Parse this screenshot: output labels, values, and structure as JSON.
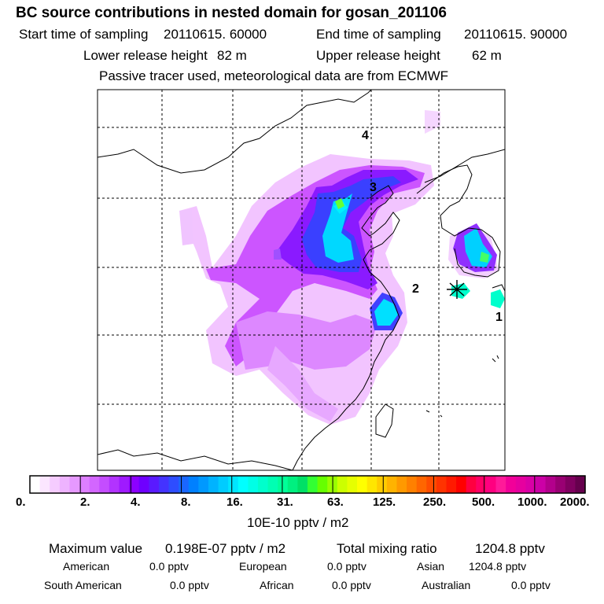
{
  "header": {
    "title": "BC  source contributions in nested domain for gosan_201106",
    "start_label": "Start time of sampling",
    "start_value": "20110615. 60000",
    "end_label": "End time of sampling",
    "end_value": "20110615. 90000",
    "lower_label": "Lower release height",
    "lower_value": "82 m",
    "upper_label": "Upper release height",
    "upper_value": "62 m",
    "note": "Passive tracer used, meteorological data are from ECMWF"
  },
  "chart_data": {
    "type": "heatmap",
    "title": "BC  source contributions in nested domain for gosan_201106",
    "region_labels": [
      "4",
      "3",
      "2",
      "1"
    ],
    "colorbar": {
      "unit": "10E-10 pptv / m2",
      "ticks": [
        "0.",
        "2.",
        "4.",
        "8.",
        "16.",
        "31.",
        "63.",
        "125.",
        "250.",
        "500.",
        "1000.",
        "2000."
      ],
      "colors": [
        "#ffffff",
        "#fbe6ff",
        "#f5ccff",
        "#eeb3ff",
        "#e699ff",
        "#dd7fff",
        "#d366ff",
        "#c44dff",
        "#b233ff",
        "#9f1aff",
        "#8c00ff",
        "#6f00ff",
        "#5a1aff",
        "#4433ff",
        "#2e4dff",
        "#1a66ff",
        "#0080ff",
        "#0099ff",
        "#00b3ff",
        "#00ccff",
        "#00e6ff",
        "#00ffff",
        "#00ffe6",
        "#00ffcc",
        "#00ffb3",
        "#00ff99",
        "#00f080",
        "#00e066",
        "#33ff33",
        "#66ff00",
        "#99ff00",
        "#ccff00",
        "#e6ff00",
        "#ffff00",
        "#ffe600",
        "#ffcc00",
        "#ffb300",
        "#ff9900",
        "#ff8000",
        "#ff6600",
        "#ff4d00",
        "#ff3300",
        "#ff1a00",
        "#ff0000",
        "#ff0040",
        "#ff0066",
        "#ff0080",
        "#ff1a99",
        "#f20099",
        "#e6009f",
        "#d900a6",
        "#cc00a6",
        "#b3008c",
        "#990073",
        "#800060",
        "#66004d"
      ]
    },
    "max_value": "0.198E-07 pptv / m2",
    "total_mixing_ratio": "1204.8 pptv"
  },
  "stats": {
    "max_label": "Maximum value",
    "max_value": "0.198E-07 pptv / m2",
    "total_label": "Total mixing ratio",
    "total_value": "1204.8 pptv",
    "american_label": "American",
    "american_value": "0.0 pptv",
    "european_label": "European",
    "european_value": "0.0 pptv",
    "asian_label": "Asian",
    "asian_value": "1204.8 pptv",
    "south_american_label": "South American",
    "south_american_value": "0.0 pptv",
    "african_label": "African",
    "african_value": "0.0 pptv",
    "australian_label": "Australian",
    "australian_value": "0.0 pptv"
  }
}
